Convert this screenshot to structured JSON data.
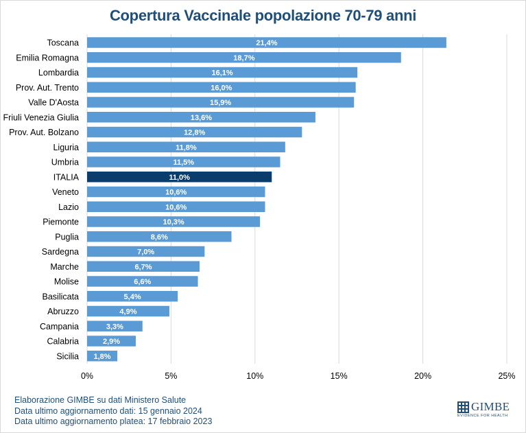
{
  "colors": {
    "bar": "#5b9bd5",
    "highlight_bar": "#0a3d6b",
    "title": "#1f4e79",
    "gridline": "#d9d9d9",
    "footer_text": "#1f4e79"
  },
  "chart_data": {
    "type": "bar",
    "orientation": "horizontal",
    "title": "Copertura Vaccinale popolazione 70-79 anni",
    "xlabel": "",
    "ylabel": "",
    "xlim": [
      0,
      25
    ],
    "grid": true,
    "highlight_category": "ITALIA",
    "categories": [
      "Toscana",
      "Emilia Romagna",
      "Lombardia",
      "Prov. Aut. Trento",
      "Valle D'Aosta",
      "Friuli Venezia Giulia",
      "Prov. Aut. Bolzano",
      "Liguria",
      "Umbria",
      "ITALIA",
      "Veneto",
      "Lazio",
      "Piemonte",
      "Puglia",
      "Sardegna",
      "Marche",
      "Molise",
      "Basilicata",
      "Abruzzo",
      "Campania",
      "Calabria",
      "Sicilia"
    ],
    "values": [
      21.4,
      18.7,
      16.1,
      16.0,
      15.9,
      13.6,
      12.8,
      11.8,
      11.5,
      11.0,
      10.6,
      10.6,
      10.3,
      8.6,
      7.0,
      6.7,
      6.6,
      5.4,
      4.9,
      3.3,
      2.9,
      1.8
    ],
    "value_labels": [
      "21,4%",
      "18,7%",
      "16,1%",
      "16,0%",
      "15,9%",
      "13,6%",
      "12,8%",
      "11,8%",
      "11,5%",
      "11,0%",
      "10,6%",
      "10,6%",
      "10,3%",
      "8,6%",
      "7,0%",
      "6,7%",
      "6,6%",
      "5,4%",
      "4,9%",
      "3,3%",
      "2,9%",
      "1,8%"
    ],
    "x_ticks": [
      0,
      5,
      10,
      15,
      20,
      25
    ],
    "x_tick_labels": [
      "0%",
      "5%",
      "10%",
      "15%",
      "20%",
      "25%"
    ]
  },
  "footer": {
    "line1": "Elaborazione GIMBE su dati Ministero Salute",
    "line2": "Data ultimo aggiornamento dati: 15 gennaio 2024",
    "line3": "Data ultimo aggiornamento platea: 17 febbraio 2023"
  },
  "logo": {
    "name": "GIMBE",
    "tagline": "EVIDENCE FOR HEALTH"
  }
}
